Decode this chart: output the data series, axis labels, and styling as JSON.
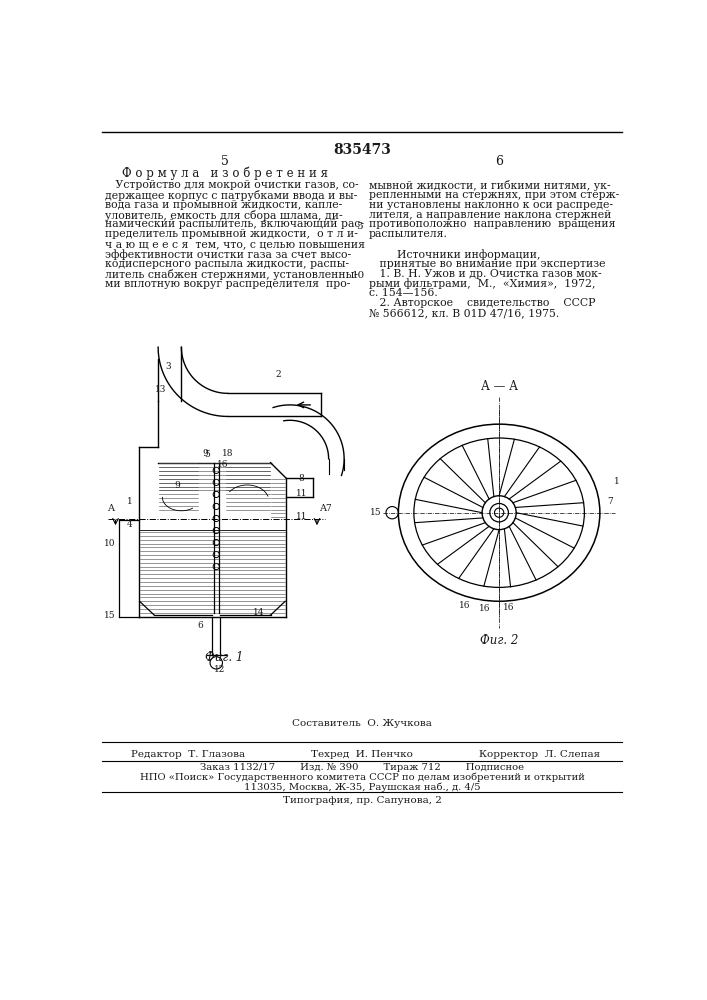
{
  "title": "835473",
  "page_nums": [
    "5",
    "6"
  ],
  "left_heading": "Ф о р м у л а   и з о б р е т е н и я",
  "left_text_lines": [
    "   Устройство для мокрой очистки газов, со-",
    "держащее корпус с патрубками ввода и вы-",
    "вода газа и промывной жидкости, капле-",
    "уловитель, емкость для сбора шлама, ди-",
    "намический распылитель, включающий рас-",
    "пределитель промывной жидкости,  о т л и-",
    "ч а ю щ е е с я  тем, что, с целью повышения",
    "эффективности очистки газа за счет высо-",
    "кодисперсного распыла жидкости, распы-",
    "литель снабжен стержнями, установленны-",
    "ми вплотную вокруг распределителя  про-"
  ],
  "right_text_lines": [
    "мывной жидкости, и гибкими нитями, ук-",
    "репленными на стержнях, при этом стерж-",
    "ни установлены наклонно к оси распреде-",
    "лителя, а направление наклона стержней",
    "противоположно  направлению  вращения",
    "распылителя.",
    "",
    "        Источники информации,",
    "   принятые во внимание при экспертизе",
    "   1. В. Н. Ужов и др. Очистка газов мок-",
    "рыми фильтрами,  М.,  «Химия»,  1972,",
    "с. 154—156.",
    "   2. Авторское    свидетельство    СССР",
    "№ 566612, кл. В 01D 47/16, 1975."
  ],
  "fig1_label": "Фиг. 1",
  "fig2_label": "Фиг. 2",
  "fig2_section_label": "А — А",
  "sestavitel": "Составитель  О. Жучкова",
  "bottom_editor": "Редактор  Т. Глазова",
  "bottom_techred": "Техред  И. Пенчко",
  "bottom_corrector": "Корректор  Л. Слепая",
  "bottom_line2": "Заказ 1132/17        Изд. № 390        Тираж 712        Подписное",
  "bottom_line3": "НПО «Поиск» Государственного комитета СССР по делам изобретений и открытий",
  "bottom_line3b": "113035, Москва, Ж-35, Раушская наб., д. 4/5",
  "bottom_line4": "Типография, пр. Сапунова, 2",
  "bg_color": "#ffffff",
  "text_color": "#1a1a1a",
  "line_color": "#000000"
}
